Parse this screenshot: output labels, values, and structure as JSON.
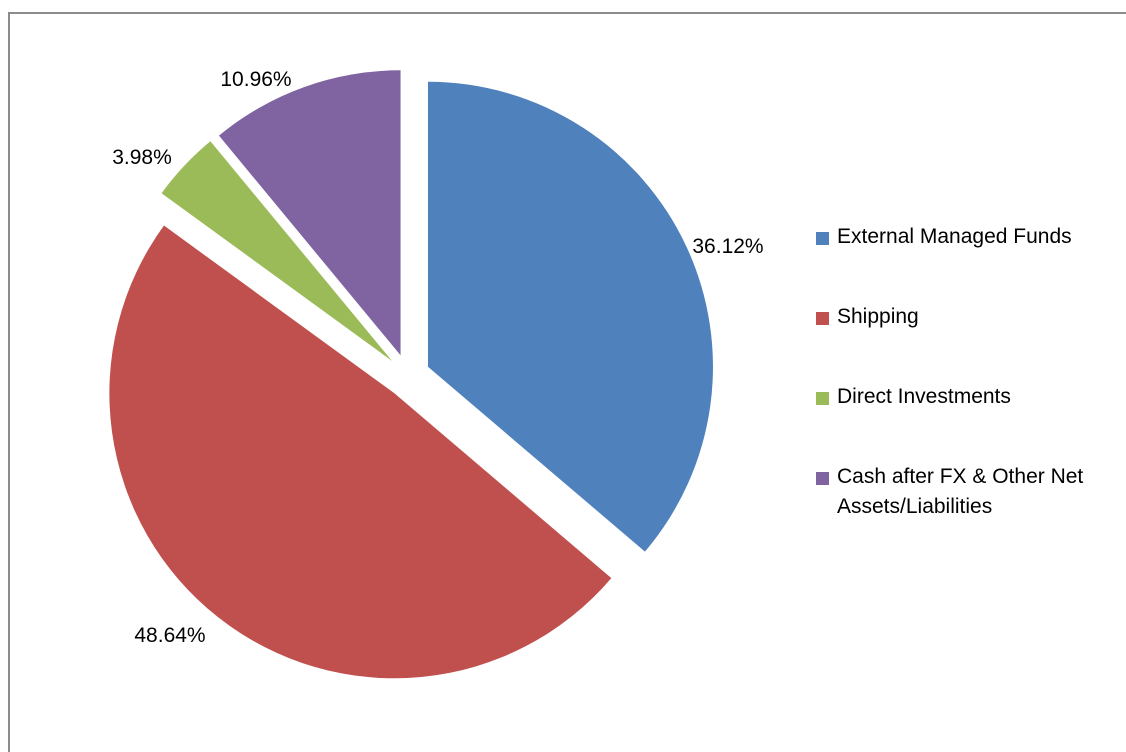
{
  "chart_data": {
    "type": "pie",
    "slices": [
      {
        "name": "External Managed  Funds",
        "value": 36.12,
        "label": "36.12%",
        "color": "#4f81bd"
      },
      {
        "name": "Shipping",
        "value": 48.64,
        "label": "48.64%",
        "color": "#c0504d"
      },
      {
        "name": "Direct Investments",
        "value": 3.98,
        "label": "3.98%",
        "color": "#9bbb59"
      },
      {
        "name": "Cash after FX & Other Net Assets/Liabilities",
        "value": 10.96,
        "label": "10.96%",
        "color": "#8064a2"
      }
    ],
    "legend_position": "right",
    "exploded": true
  }
}
